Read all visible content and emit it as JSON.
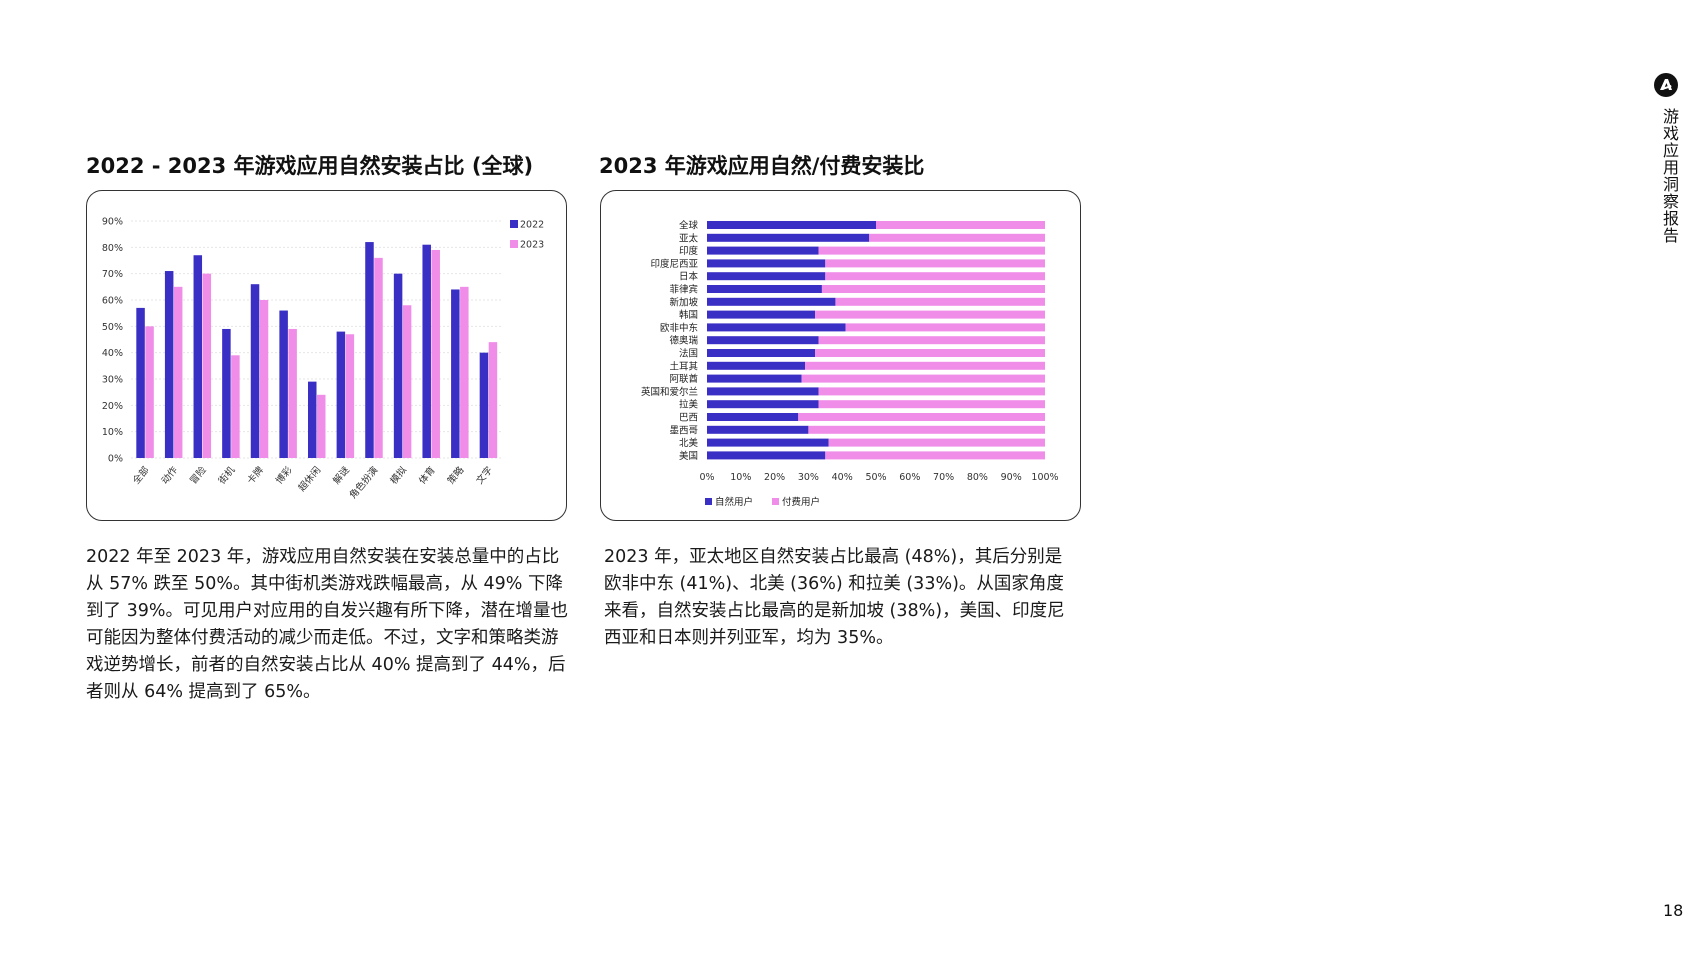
{
  "sidebar": {
    "label": "游戏应用洞察报告",
    "logo_icon": "brand-logo-icon"
  },
  "page_number": "18",
  "left": {
    "title": "2022 - 2023 年游戏应用自然安装占比 (全球)",
    "paragraph": "2022 年至 2023 年，游戏应用自然安装在安装总量中的占比从 57% 跌至 50%。其中街机类游戏跌幅最高，从 49% 下降到了 39%。可见用户对应用的自发兴趣有所下降，潜在增量也可能因为整体付费活动的减少而走低。不过，文字和策略类游戏逆势增长，前者的自然安装占比从 40% 提高到了 44%，后者则从 64% 提高到了 65%。"
  },
  "right": {
    "title": "2023 年游戏应用自然/付费安装比",
    "paragraph": "2023 年，亚太地区自然安装占比最高 (48%)，其后分别是欧非中东 (41%)、北美 (36%) 和拉美 (33%)。从国家角度来看，自然安装占比最高的是新加坡 (38%)，美国、印度尼西亚和日本则并列亚军，均为 35%。"
  },
  "chart_data": [
    {
      "type": "bar",
      "categories": [
        "全部",
        "动作",
        "冒险",
        "街机",
        "卡牌",
        "博彩",
        "超休闲",
        "解谜",
        "角色扮演",
        "模拟",
        "体育",
        "策略",
        "文字"
      ],
      "series": [
        {
          "name": "2022",
          "color": "#3a2fc4",
          "values": [
            57,
            71,
            77,
            49,
            66,
            56,
            29,
            48,
            82,
            70,
            81,
            64,
            40
          ]
        },
        {
          "name": "2023",
          "color": "#f08de8",
          "values": [
            50,
            65,
            70,
            39,
            60,
            49,
            24,
            47,
            76,
            58,
            79,
            65,
            44
          ]
        }
      ],
      "ylim": [
        0,
        90
      ],
      "yticks": [
        "0%",
        "10%",
        "20%",
        "30%",
        "40%",
        "50%",
        "60%",
        "70%",
        "80%",
        "90%"
      ],
      "legend_position": "top-right",
      "grid": true
    },
    {
      "type": "bar",
      "orientation": "horizontal",
      "stacked": true,
      "categories": [
        "全球",
        "亚太",
        "印度",
        "印度尼西亚",
        "日本",
        "菲律宾",
        "新加坡",
        "韩国",
        "欧非中东",
        "德奥瑞",
        "法国",
        "土耳其",
        "阿联酋",
        "英国和爱尔兰",
        "拉美",
        "巴西",
        "墨西哥",
        "北美",
        "美国"
      ],
      "series": [
        {
          "name": "自然用户",
          "color": "#3a2fc4",
          "values": [
            50,
            48,
            33,
            35,
            35,
            34,
            38,
            32,
            41,
            33,
            32,
            29,
            28,
            33,
            33,
            27,
            30,
            36,
            35
          ]
        },
        {
          "name": "付费用户",
          "color": "#f08de8",
          "values": [
            50,
            52,
            67,
            65,
            65,
            66,
            62,
            68,
            59,
            67,
            68,
            71,
            72,
            67,
            67,
            73,
            70,
            64,
            65
          ]
        }
      ],
      "xlim": [
        0,
        100
      ],
      "xticks": [
        "0%",
        "10%",
        "20%",
        "30%",
        "40%",
        "50%",
        "60%",
        "70%",
        "80%",
        "90%",
        "100%"
      ],
      "legend_position": "bottom-left"
    }
  ]
}
